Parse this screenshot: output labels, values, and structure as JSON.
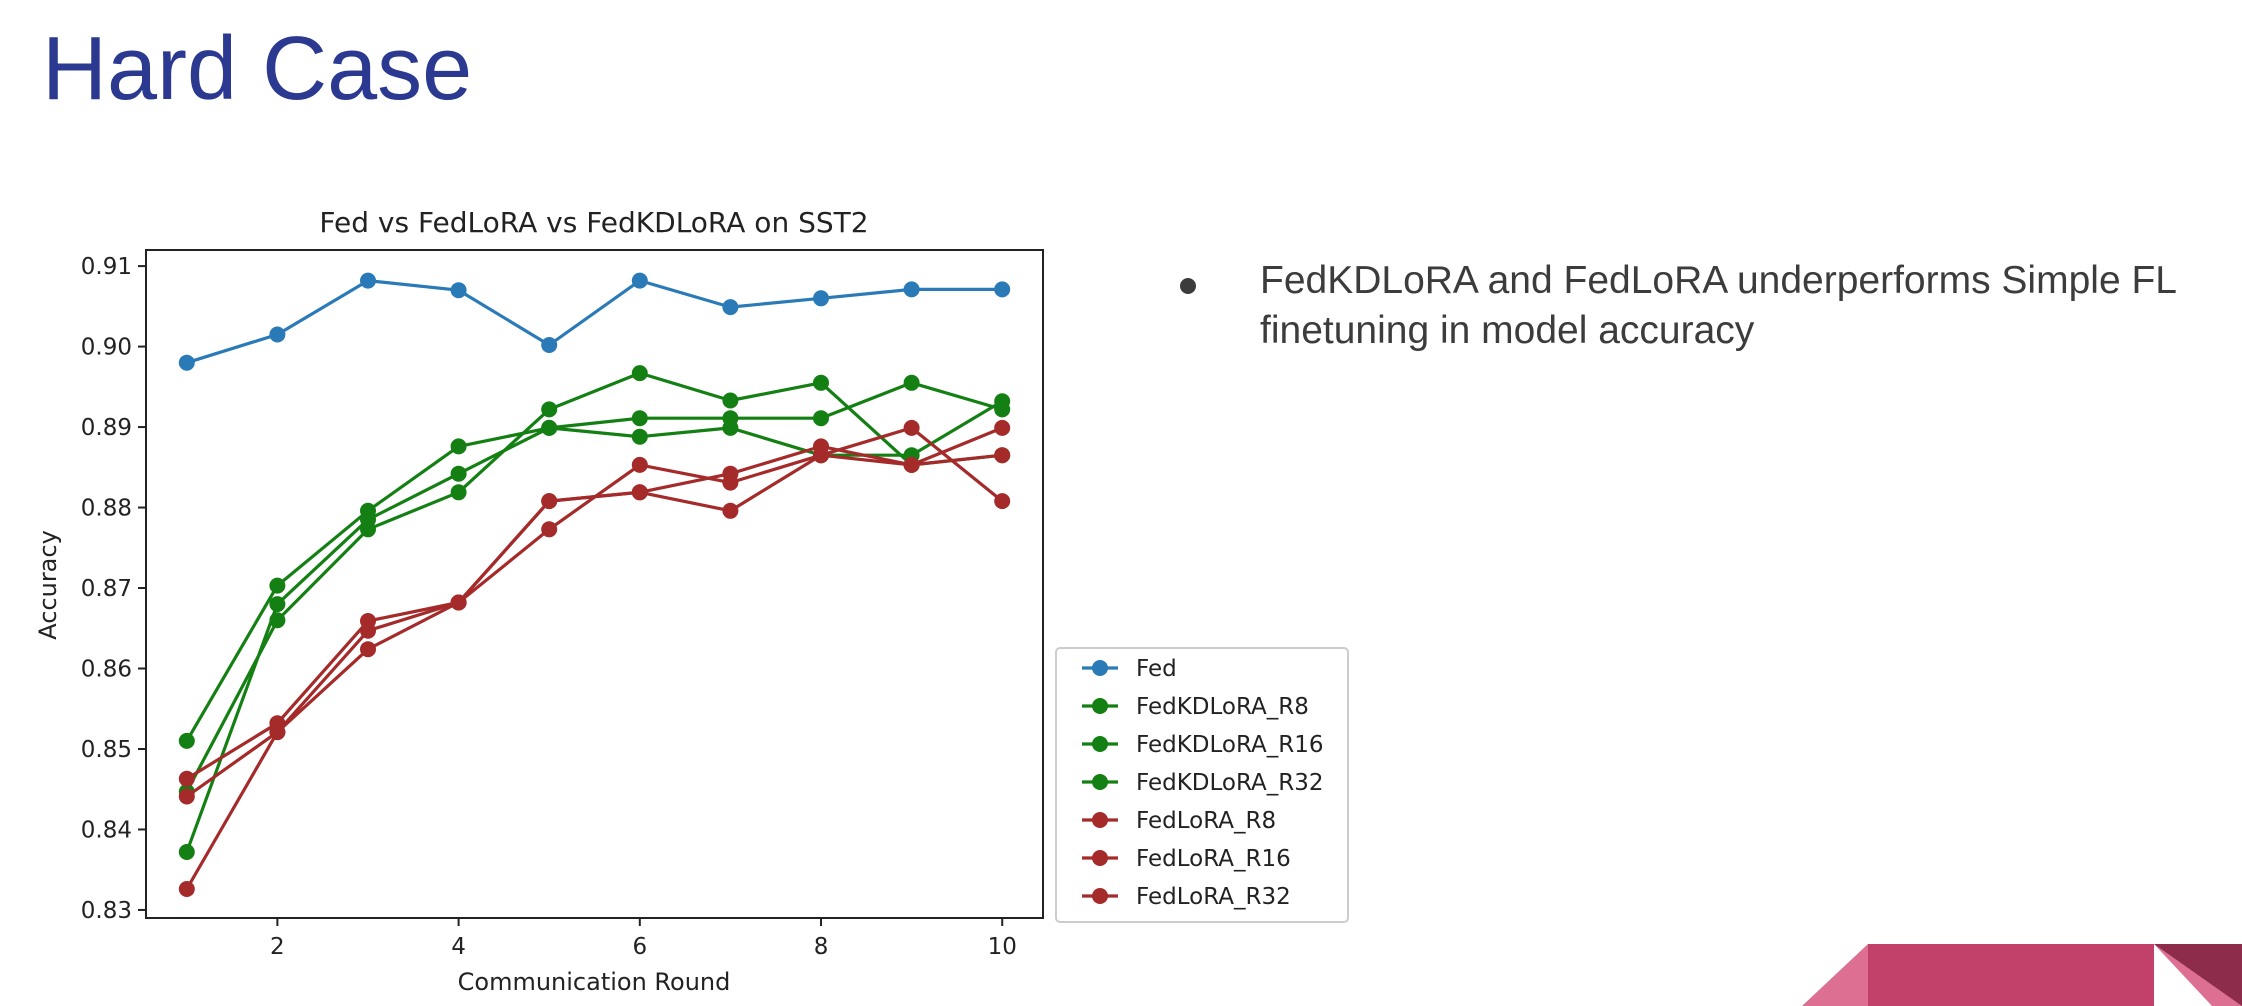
{
  "slide": {
    "title": "Hard Case",
    "bullets": [
      "FedKDLoRA and FedLoRA underperforms Simple FL finetuning in model accuracy"
    ]
  },
  "colors": {
    "title": "#2b3990",
    "fed": "#2a7ab8",
    "fedkdlora": "#148014",
    "fedlora": "#a52a2a",
    "deco_main": "#c2416a",
    "deco_light": "#dd6f92",
    "deco_dark": "#8e2c4c"
  },
  "chart_data": {
    "type": "line",
    "title": "Fed vs FedLoRA vs FedKDLoRA on SST2",
    "xlabel": "Communication Round",
    "ylabel": "Accuracy",
    "xlim": [
      0.55,
      10.45
    ],
    "ylim": [
      0.829,
      0.912
    ],
    "xticks": [
      2,
      4,
      6,
      8,
      10
    ],
    "yticks": [
      "0.83",
      "0.84",
      "0.85",
      "0.86",
      "0.87",
      "0.88",
      "0.89",
      "0.90",
      "0.91"
    ],
    "grid": false,
    "legend_position": "outside lower right",
    "x": [
      1,
      2,
      3,
      4,
      5,
      6,
      7,
      8,
      9,
      10
    ],
    "series": [
      {
        "name": "Fed",
        "color": "#2a7ab8",
        "values": [
          0.898,
          0.9015,
          0.9082,
          0.907,
          0.9002,
          0.9082,
          0.9049,
          0.906,
          0.9071,
          0.9071
        ]
      },
      {
        "name": "FedKDLoRA_R8",
        "color": "#148014",
        "values": [
          0.851,
          0.8703,
          0.8796,
          0.8876,
          0.8899,
          0.8888,
          0.8899,
          0.8865,
          0.8865,
          0.8932
        ]
      },
      {
        "name": "FedKDLoRA_R16",
        "color": "#148014",
        "values": [
          0.8447,
          0.866,
          0.8773,
          0.8819,
          0.8922,
          0.8967,
          0.8933,
          0.8955,
          0.8853,
          0.8865
        ]
      },
      {
        "name": "FedKDLoRA_R32",
        "color": "#148014",
        "values": [
          0.8372,
          0.868,
          0.8785,
          0.8842,
          0.8899,
          0.8911,
          0.8911,
          0.8911,
          0.8955,
          0.8922
        ]
      },
      {
        "name": "FedLoRA_R8",
        "color": "#a52a2a",
        "values": [
          0.8463,
          0.8532,
          0.8659,
          0.8682,
          0.8808,
          0.8819,
          0.8796,
          0.8865,
          0.8853,
          0.8865
        ]
      },
      {
        "name": "FedLoRA_R16",
        "color": "#a52a2a",
        "values": [
          0.8441,
          0.8521,
          0.8647,
          0.8682,
          0.8773,
          0.8853,
          0.8831,
          0.8865,
          0.8899,
          0.8808
        ]
      },
      {
        "name": "FedLoRA_R32",
        "color": "#a52a2a",
        "values": [
          0.8326,
          0.8521,
          0.8624,
          0.8682,
          0.8808,
          0.8819,
          0.8842,
          0.8876,
          0.8853,
          0.8899
        ]
      }
    ]
  }
}
